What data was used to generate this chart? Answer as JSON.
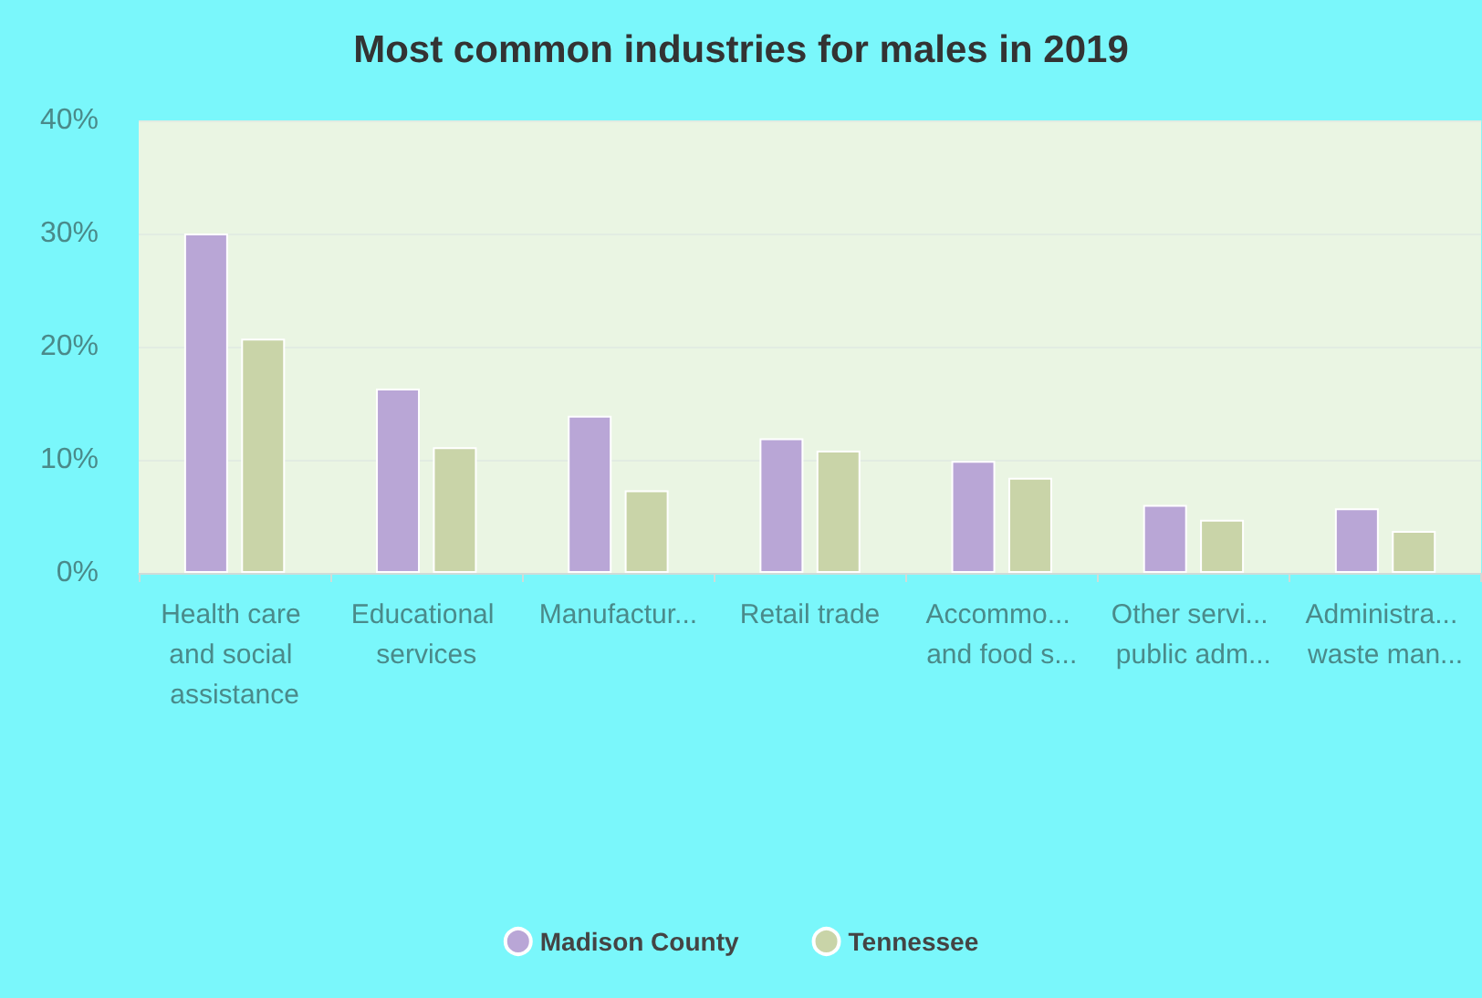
{
  "chart_data": {
    "type": "bar",
    "title": "Most common industries for males in 2019",
    "categories": [
      "Health care and social assistance",
      "Educational services",
      "Manufactur...",
      "Retail trade",
      "Accommo... and food s...",
      "Other servi... public adm...",
      "Administra... waste man..."
    ],
    "series": [
      {
        "name": "Madison County",
        "color": "#b9a6d6",
        "values": [
          30,
          16.3,
          13.9,
          11.9,
          9.9,
          6.0,
          5.7
        ]
      },
      {
        "name": "Tennessee",
        "color": "#c9d4a8",
        "values": [
          20.7,
          11.1,
          7.3,
          10.8,
          8.4,
          4.7,
          3.7
        ]
      }
    ],
    "ylim": [
      0,
      40
    ],
    "yticks": [
      {
        "value": 0,
        "label": "0%"
      },
      {
        "value": 10,
        "label": "10%"
      },
      {
        "value": 20,
        "label": "20%"
      },
      {
        "value": 30,
        "label": "30%"
      },
      {
        "value": 40,
        "label": "40%"
      }
    ],
    "grid": "y",
    "legend": "bottom"
  }
}
